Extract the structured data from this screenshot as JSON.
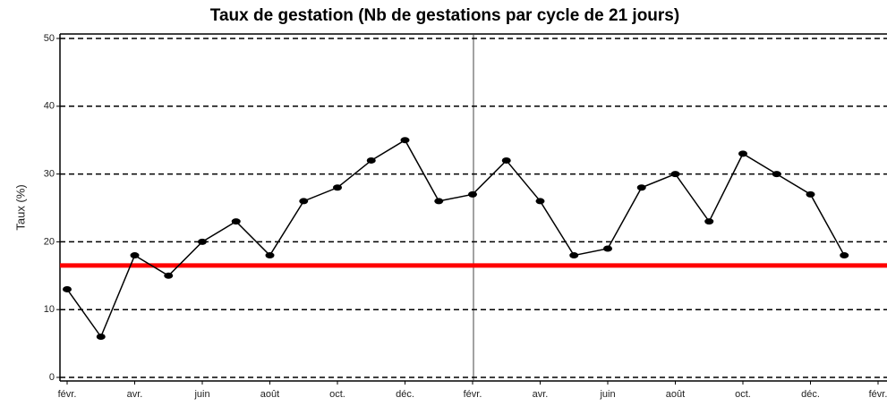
{
  "chart_data": {
    "type": "line",
    "title": "Taux de gestation (Nb de gestations par cycle de 21 jours)",
    "y_label": "Taux (%)",
    "categories": [
      "févr.",
      null,
      "avr.",
      null,
      "juin",
      null,
      "août",
      null,
      "oct.",
      null,
      "déc.",
      null,
      "févr.",
      null,
      "avr.",
      null,
      "juin",
      null,
      "août",
      null,
      "oct.",
      null,
      "déc.",
      null,
      "févr."
    ],
    "values": [
      13,
      6,
      18,
      15,
      20,
      23,
      18,
      26,
      28,
      32,
      35,
      26,
      27,
      32,
      26,
      18,
      19,
      28,
      30,
      23,
      33,
      30,
      27,
      18,
      null
    ],
    "color": "#000000",
    "ylim": [
      0,
      50
    ],
    "yticks": [
      0,
      10,
      20,
      30,
      40,
      50
    ],
    "grid": true,
    "threshold": {
      "value": 16.5,
      "color": "#ff0000"
    }
  }
}
